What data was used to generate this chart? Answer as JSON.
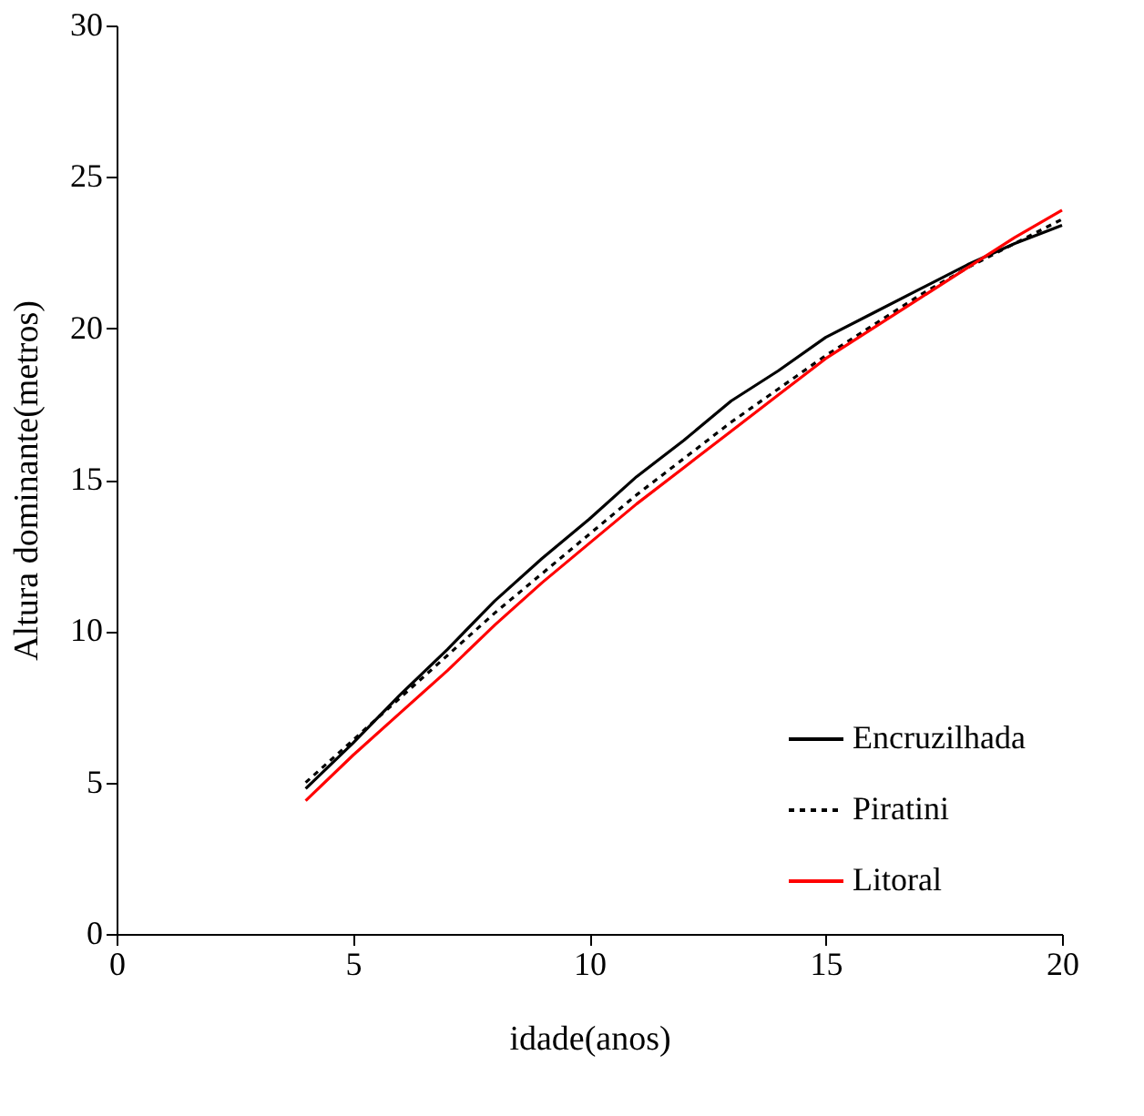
{
  "chart_data": {
    "type": "line",
    "xlabel": "idade(anos)",
    "ylabel": "Altura dominante(metros)",
    "x": [
      4,
      5,
      6,
      7,
      8,
      9,
      10,
      11,
      12,
      13,
      14,
      15,
      16,
      17,
      18,
      19,
      20
    ],
    "series": [
      {
        "name": "Encruzilhada",
        "color": "#000000",
        "line_style": "solid",
        "values": [
          4.8,
          6.3,
          7.9,
          9.4,
          11.0,
          12.4,
          13.7,
          15.1,
          16.3,
          17.6,
          18.6,
          19.7,
          20.5,
          21.3,
          22.1,
          22.8,
          23.4
        ]
      },
      {
        "name": "Piratini",
        "color": "#000000",
        "line_style": "dotted",
        "values": [
          5.0,
          6.4,
          7.8,
          9.2,
          10.6,
          11.9,
          13.2,
          14.5,
          15.7,
          16.9,
          18.0,
          19.1,
          20.1,
          21.1,
          22.0,
          22.8,
          23.6
        ]
      },
      {
        "name": "Litoral",
        "color": "#ff0000",
        "line_style": "solid",
        "values": [
          4.4,
          5.9,
          7.3,
          8.7,
          10.2,
          11.6,
          12.9,
          14.2,
          15.4,
          16.6,
          17.8,
          19.0,
          20.0,
          21.0,
          22.0,
          23.0,
          23.9
        ]
      }
    ],
    "xlim": [
      0,
      20
    ],
    "xticks": [
      0,
      5,
      10,
      15,
      20
    ],
    "ylim": [
      0,
      30
    ],
    "yticks": [
      0,
      5,
      10,
      15,
      20,
      25,
      30
    ],
    "grid": false,
    "legend": "bottom right"
  }
}
